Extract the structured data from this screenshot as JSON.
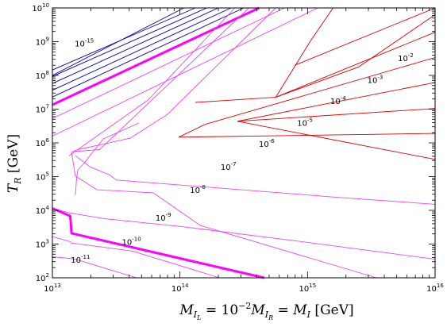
{
  "chart_data": {
    "type": "line",
    "title": "",
    "xlabel": {
      "prefix": "M",
      "prefix_sub": "I",
      "prefix_subsub": "L",
      "eq1": " = 10",
      "eq1_sup": "−2",
      "mid": "M",
      "mid_sub": "I",
      "mid_subsub": "R",
      "eq2": " = ",
      "last": "M",
      "last_sub": "I",
      "unit": " [GeV]"
    },
    "ylabel": {
      "symbol": "T",
      "sub": "R",
      "unit": " [GeV]"
    },
    "x_scale": "log",
    "y_scale": "log",
    "xlim_log10": [
      13,
      16
    ],
    "ylim_log10": [
      2,
      10
    ],
    "x_ticks": [
      {
        "base": "10",
        "exp": "13",
        "log": 13
      },
      {
        "base": "10",
        "exp": "14",
        "log": 14
      },
      {
        "base": "10",
        "exp": "15",
        "log": 15
      },
      {
        "base": "10",
        "exp": "16",
        "log": 16
      }
    ],
    "y_ticks": [
      {
        "base": "10",
        "exp": "2",
        "log": 2
      },
      {
        "base": "10",
        "exp": "3",
        "log": 3
      },
      {
        "base": "10",
        "exp": "4",
        "log": 4
      },
      {
        "base": "10",
        "exp": "5",
        "log": 5
      },
      {
        "base": "10",
        "exp": "6",
        "log": 6
      },
      {
        "base": "10",
        "exp": "7",
        "log": 7
      },
      {
        "base": "10",
        "exp": "8",
        "log": 8
      },
      {
        "base": "10",
        "exp": "9",
        "log": 9
      },
      {
        "base": "10",
        "exp": "10",
        "log": 10
      }
    ],
    "colors": {
      "magenta": "#ee44ee",
      "magenta_thick": "#ff00ff",
      "red": "#dd0000",
      "blue": "#0000bb"
    },
    "contours": [
      {
        "color": "blue",
        "points": [
          [
            13.0,
            8.0
          ],
          [
            14.03,
            10.0
          ]
        ]
      },
      {
        "color": "blue",
        "points": [
          [
            13.0,
            8.16
          ],
          [
            14.12,
            10.0
          ]
        ]
      },
      {
        "color": "blue",
        "points": [
          [
            13.0,
            7.97
          ],
          [
            14.21,
            10.0
          ]
        ]
      },
      {
        "color": "blue",
        "points": [
          [
            13.0,
            7.76
          ],
          [
            14.3,
            10.0
          ]
        ]
      },
      {
        "color": "blue",
        "points": [
          [
            13.0,
            7.56
          ],
          [
            14.4,
            10.0
          ]
        ]
      },
      {
        "color": "blue",
        "points": [
          [
            13.0,
            7.36
          ],
          [
            14.5,
            10.0
          ]
        ]
      },
      {
        "color": "magenta_thick",
        "thick": true,
        "points": [
          [
            13.0,
            7.13
          ],
          [
            14.62,
            10.0
          ]
        ]
      },
      {
        "color": "magenta",
        "points": [
          [
            13.0,
            6.72
          ],
          [
            14.82,
            10.0
          ]
        ]
      },
      {
        "color": "magenta",
        "points": [
          [
            13.0,
            6.2
          ],
          [
            15.08,
            10.0
          ]
        ]
      },
      {
        "color": "magenta",
        "points": [
          [
            13.13,
            5.62
          ],
          [
            13.75,
            7.27
          ],
          [
            14.43,
            10.0
          ]
        ]
      },
      {
        "color": "magenta",
        "points": [
          [
            13.17,
            5.74
          ],
          [
            13.37,
            5.8
          ],
          [
            14.54,
            10.0
          ]
        ]
      },
      {
        "color": "magenta",
        "points": [
          [
            13.15,
            5.72
          ],
          [
            13.18,
            5.02
          ],
          [
            13.35,
            4.61
          ],
          [
            13.79,
            4.52
          ],
          [
            14.16,
            3.55
          ],
          [
            15.54,
            2.0
          ]
        ]
      },
      {
        "color": "magenta",
        "points": [
          [
            13.15,
            5.72
          ],
          [
            13.2,
            5.8
          ],
          [
            13.61,
            6.14
          ],
          [
            13.9,
            6.84
          ],
          [
            14.75,
            10.0
          ]
        ]
      },
      {
        "color": "magenta",
        "points": [
          [
            13.18,
            4.45
          ],
          [
            13.19,
            4.95
          ],
          [
            13.2,
            5.2
          ],
          [
            13.25,
            5.4
          ],
          [
            13.29,
            5.6
          ],
          [
            13.4,
            6.12
          ],
          [
            13.68,
            6.59
          ]
        ]
      },
      {
        "color": "magenta",
        "points": [
          [
            13.18,
            5.62
          ],
          [
            13.3,
            5.28
          ],
          [
            13.45,
            5.05
          ],
          [
            13.5,
            4.9
          ],
          [
            15.26,
            4.38
          ],
          [
            16.0,
            4.18
          ]
        ]
      },
      {
        "color": "magenta",
        "points": [
          [
            13.0,
            4.06
          ],
          [
            13.14,
            3.92
          ],
          [
            13.41,
            3.75
          ],
          [
            14.01,
            3.52
          ],
          [
            15.0,
            3.05
          ],
          [
            16.0,
            2.55
          ]
        ]
      },
      {
        "color": "magenta_thick",
        "thick": true,
        "points": [
          [
            13.0,
            4.06
          ],
          [
            13.14,
            3.83
          ],
          [
            13.15,
            3.32
          ],
          [
            14.66,
            2.0
          ]
        ]
      },
      {
        "color": "magenta",
        "points": [
          [
            13.0,
            3.22
          ],
          [
            13.14,
            3.07
          ],
          [
            13.15,
            3.03
          ],
          [
            13.63,
            2.79
          ],
          [
            14.31,
            2.0
          ]
        ]
      },
      {
        "color": "magenta",
        "points": [
          [
            13.0,
            2.62
          ],
          [
            13.15,
            2.57
          ],
          [
            13.19,
            2.54
          ],
          [
            13.66,
            2.0
          ]
        ]
      },
      {
        "color": "red",
        "points": [
          [
            13.99,
            6.17
          ],
          [
            14.2,
            6.55
          ],
          [
            16.0,
            8.53
          ]
        ]
      },
      {
        "color": "red",
        "points": [
          [
            14.45,
            6.64
          ],
          [
            16.0,
            7.79
          ]
        ]
      },
      {
        "color": "red",
        "points": [
          [
            14.45,
            6.64
          ],
          [
            16.0,
            7.02
          ]
        ]
      },
      {
        "color": "red",
        "points": [
          [
            13.99,
            6.17
          ],
          [
            16.0,
            6.28
          ]
        ]
      },
      {
        "color": "red",
        "points": [
          [
            14.45,
            6.64
          ],
          [
            16.0,
            5.51
          ]
        ]
      },
      {
        "color": "red",
        "points": [
          [
            14.75,
            7.35
          ],
          [
            16.0,
            9.28
          ]
        ]
      },
      {
        "color": "red",
        "points": [
          [
            14.9,
            8.3
          ],
          [
            16.0,
            10.0
          ]
        ]
      },
      {
        "color": "red",
        "points": [
          [
            14.75,
            7.35
          ],
          [
            15.02,
            9.0
          ],
          [
            15.2,
            10.0
          ]
        ]
      },
      {
        "color": "red",
        "points": [
          [
            14.12,
            7.2
          ],
          [
            14.75,
            7.35
          ]
        ]
      },
      {
        "color": "red",
        "points": [
          [
            14.75,
            7.35
          ],
          [
            15.4,
            8.25
          ],
          [
            16.0,
            9.8
          ]
        ]
      }
    ],
    "labels": [
      {
        "base": "10",
        "exp": "-15",
        "x": 13.25,
        "y": 8.86
      },
      {
        "base": "10",
        "exp": "-2",
        "x": 15.77,
        "y": 8.42
      },
      {
        "base": "10",
        "exp": "-3",
        "x": 15.53,
        "y": 7.78
      },
      {
        "base": "10",
        "exp": "-4",
        "x": 15.24,
        "y": 7.15
      },
      {
        "base": "10",
        "exp": "-5",
        "x": 14.98,
        "y": 6.51
      },
      {
        "base": "10",
        "exp": "-6",
        "x": 14.68,
        "y": 5.88
      },
      {
        "base": "10",
        "exp": "-7",
        "x": 14.38,
        "y": 5.2
      },
      {
        "base": "10",
        "exp": "-8",
        "x": 14.14,
        "y": 4.52
      },
      {
        "base": "10",
        "exp": "-9",
        "x": 13.87,
        "y": 3.7
      },
      {
        "base": "10",
        "exp": "-10",
        "x": 13.62,
        "y": 2.98
      },
      {
        "base": "10",
        "exp": "-11",
        "x": 13.22,
        "y": 2.45
      }
    ]
  }
}
